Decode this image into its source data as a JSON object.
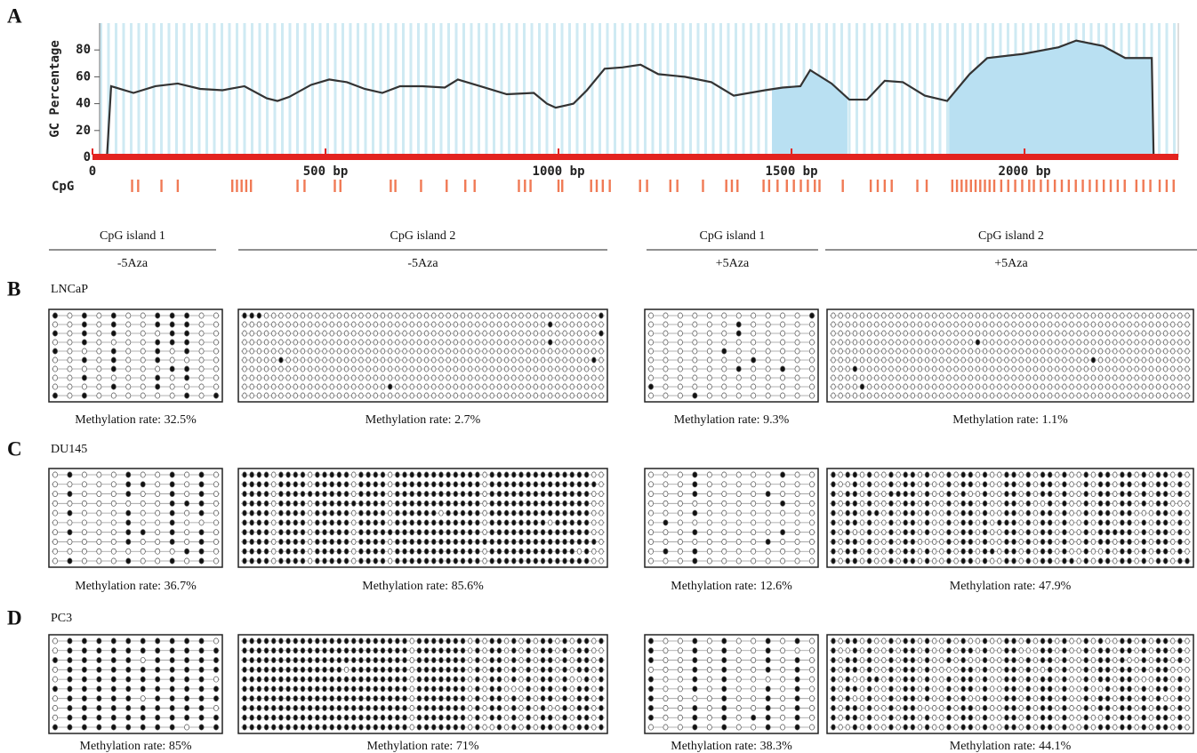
{
  "chart_data": {
    "type": "line",
    "panel_label": "A",
    "ylabel": "GC Percentage",
    "cpg_label": "CpG",
    "xlim": [
      0,
      2330
    ],
    "ylim": [
      0,
      100
    ],
    "yticks": [
      0,
      20,
      40,
      60,
      80
    ],
    "xticks": [
      0,
      {
        "value": 500,
        "label": "500 bp"
      },
      {
        "value": 1000,
        "label": "1000 bp"
      },
      {
        "value": 1500,
        "label": "1500 bp"
      },
      {
        "value": 2000,
        "label": "2000 bp"
      }
    ],
    "x": [
      0,
      31,
      40,
      88,
      135,
      183,
      231,
      279,
      326,
      374,
      397,
      422,
      469,
      508,
      546,
      584,
      622,
      660,
      708,
      756,
      784,
      832,
      889,
      947,
      975,
      994,
      1032,
      1061,
      1099,
      1137,
      1176,
      1214,
      1271,
      1328,
      1376,
      1443,
      1481,
      1519,
      1540,
      1586,
      1624,
      1662,
      1700,
      1739,
      1786,
      1834,
      1882,
      1920,
      1996,
      2073,
      2111,
      2168,
      2216,
      2273,
      2277
    ],
    "values": [
      0,
      0,
      53,
      48,
      53,
      55,
      51,
      50,
      53,
      44,
      42,
      45,
      54,
      58,
      56,
      51,
      48,
      53,
      53,
      52,
      58,
      53,
      47,
      48,
      40,
      37,
      40,
      50,
      66,
      67,
      69,
      62,
      60,
      56,
      46,
      50,
      52,
      53,
      65,
      55,
      43,
      43,
      57,
      56,
      46,
      42,
      62,
      74,
      77,
      82,
      87,
      83,
      74,
      74,
      0
    ],
    "islands": [
      [
        1458,
        1620
      ],
      [
        1838,
        2277
      ]
    ],
    "cpg_sites": [
      85,
      98,
      148,
      183,
      300,
      310,
      320,
      330,
      340,
      440,
      455,
      520,
      532,
      640,
      650,
      705,
      760,
      800,
      820,
      915,
      928,
      940,
      1000,
      1008,
      1070,
      1082,
      1095,
      1110,
      1175,
      1190,
      1240,
      1255,
      1310,
      1360,
      1372,
      1384,
      1440,
      1452,
      1470,
      1490,
      1505,
      1520,
      1535,
      1550,
      1560,
      1610,
      1670,
      1685,
      1700,
      1715,
      1770,
      1790,
      1845,
      1855,
      1865,
      1875,
      1885,
      1895,
      1905,
      1915,
      1925,
      1935,
      1950,
      1965,
      1980,
      1995,
      2010,
      2020,
      2035,
      2050,
      2065,
      2080,
      2095,
      2110,
      2125,
      2140,
      2155,
      2170,
      2185,
      2200,
      2215,
      2240,
      2255,
      2270,
      2290,
      2305,
      2320
    ]
  },
  "headers": [
    {
      "island": "CpG island 1",
      "treatment": "-5Aza"
    },
    {
      "island": "CpG island 2",
      "treatment": "-5Aza"
    },
    {
      "island": "CpG island 1",
      "treatment": "+5Aza"
    },
    {
      "island": "CpG island 2",
      "treatment": "+5Aza"
    }
  ],
  "cell_lines": [
    {
      "label": "B",
      "name": "LNCaP",
      "boxes": [
        {
          "rate": "Methylation rate: 32.5%",
          "rows": [
            "101010011100",
            "001010011100",
            "101010001100",
            "001000011100",
            "100010010100",
            "001010010000",
            "000010001100",
            "001000010100",
            "000010010000",
            "101000000101"
          ]
        },
        {
          "rate": "Methylation rate: 2.7%",
          "rows": [
            "11100000000000000000000000000000000000000000000001",
            "00000000000000000000000000000000000000000010000000",
            "00000000000000000000000000000000000000000000000001",
            "00000000000000000000000000000000000000000010000000",
            "00000000000000000000000000000000000000000000000000",
            "00000100000000000000000000000000000000000000000010",
            "00000000000000000000000000000000000000000000000000",
            "00000000000000000000000000000000000000000000000000",
            "00000000000000000000100000000000000000000000000000",
            "00000000000000000000000000000000000000000000000000"
          ]
        },
        {
          "rate": "Methylation rate: 9.3%",
          "rows": [
            "000000000001",
            "000000100000",
            "000000100000",
            "000000000000",
            "000001000000",
            "000000010000",
            "000000100100",
            "000000000000",
            "100000000000",
            "000100000000"
          ]
        },
        {
          "rate": "Methylation rate: 1.1%",
          "rows": [
            "00000000000000000000000000000000000000000000000000",
            "00000000000000000000000000000000000000000000000000",
            "00000000000000000000000000000000000000000000000000",
            "00000000000000000000100000000000000000000000000000",
            "00000000000000000000000000000000000000000000000000",
            "00000000000000000000000000000000000010000000000000",
            "00010000000000000000000000000000000000000000000000",
            "00000000000000000000000000000000000000000000000000",
            "00001000000000000000000000000000000000000000000000",
            "00000000000000000000000000000000000000000000000000"
          ]
        }
      ]
    },
    {
      "label": "C",
      "name": "DU145",
      "boxes": [
        {
          "rate": "Methylation rate: 36.7%",
          "rows": [
            "010001001010",
            "000001101010",
            "010001001010",
            "000000001110",
            "010001001010",
            "000001001000",
            "010001101010",
            "000001001010",
            "000000000110",
            "010001001010"
          ]
        },
        {
          "rate": "Methylation rate: 85.6%",
          "rows": [
            "11110111101111101111011111111111101111111111111100",
            "11110111101111101111011111111111101111111111111110",
            "11110111111111101111011111111111101111111111111100",
            "11110111101111111111011111111111101111111111111100",
            "11110111101111101111011111101111101111111111111100",
            "11110111101111101111011111111111101111111101111100",
            "11110111101111101111111111111111101111111111111100",
            "11110111101111101111011111111111111111111111111110",
            "11110111101111101111011111111111101111111111110100",
            "11110111101111101111011111111111101111111111111100"
          ]
        },
        {
          "rate": "Methylation rate: 12.6%",
          "rows": [
            "000100000100",
            "000100000000",
            "000100001000",
            "000000000100",
            "000100000000",
            "010000000000",
            "000100000100",
            "000000001000",
            "010100000000",
            "000100000000"
          ]
        },
        {
          "rate": "Methylation rate: 47.9%",
          "rows": [
            "10110100101101001011010011010110100101101101011010",
            "10010100101101001011010011010110100101101101011010",
            "10110100111101001010010011010110100101101101011010",
            "10110100101101001011010011010010100101101101011000",
            "10110110101101001011010011010110100101101100011010",
            "10110100101101001011010111010110100101101101011010",
            "10100100101101001011010011010110100101111101011010",
            "10110100101100001011010011010110100101101101011010",
            "10110100101101001011011011010110100100101101011010",
            "10110100101101001011010011010110110101101101011011"
          ]
        }
      ]
    },
    {
      "label": "D",
      "name": "PC3",
      "boxes": [
        {
          "rate": "Methylation rate: 85%",
          "rows": [
            "011111111110",
            "011111111111",
            "111111011111",
            "011111111111",
            "011111111110",
            "111111111111",
            "011111011111",
            "011111111110",
            "011111111111",
            "111111111011"
          ]
        },
        {
          "rate": "Methylation rate: 71%",
          "rows": [
            "11111111111111111111111011111110101101010110101101",
            "11111111111111111111111011111110101101010110101100",
            "11111111111111111111111011111110101101010110101101",
            "11111111111111011111111011111110101101010110101101",
            "11111111111111111111111011111110101101010110100101",
            "11111111111111111111111011111110101100010110101101",
            "11111111111111111111111011111110101101010110101101",
            "11111111111111111111111011111110101101010100101101",
            "11111111111111111111111011111110101101010110101101",
            "11111111111111111111111011111110100101010110101101"
          ]
        },
        {
          "rate": "Methylation rate: 38.3%",
          "rows": [
            "100101001010",
            "100101001000",
            "100101001010",
            "000101001010",
            "100101000010",
            "100101001010",
            "100001001010",
            "100101001010",
            "100101011010",
            "000101001010"
          ]
        },
        {
          "rate": "Methylation rate: 44.1%",
          "rows": [
            "10110100101101001010010011010110100101001101011010",
            "10010100101101001011010011000110100101101101011010",
            "10110100101101001010010011010110100101101001011010",
            "10110100101101000011010011010010100101101101011000",
            "10100110101101001011010011010110100101101100011010",
            "10110100101101001011010011010110100100101101011010",
            "10100100101101001010010011010110100101101101010010",
            "10110100101100001011010011010110100101101101011010",
            "10110100101101001011010011010110100100101101011010",
            "10010100101101001011010011010110100101101101011010"
          ]
        }
      ]
    }
  ]
}
